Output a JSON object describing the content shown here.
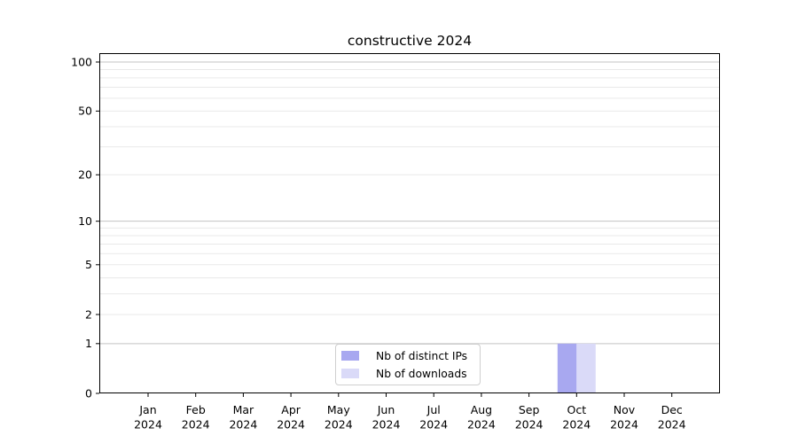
{
  "chart_data": {
    "type": "bar",
    "title": "constructive 2024",
    "categories": [
      "Jan 2024",
      "Feb 2024",
      "Mar 2024",
      "Apr 2024",
      "May 2024",
      "Jun 2024",
      "Jul 2024",
      "Aug 2024",
      "Sep 2024",
      "Oct 2024",
      "Nov 2024",
      "Dec 2024"
    ],
    "series": [
      {
        "name": "Nb of distinct IPs",
        "color": "#a8a8f0",
        "values": [
          0,
          0,
          0,
          0,
          0,
          0,
          0,
          0,
          0,
          1,
          0,
          0
        ]
      },
      {
        "name": "Nb of downloads",
        "color": "#dadaf8",
        "values": [
          0,
          0,
          0,
          0,
          0,
          0,
          0,
          0,
          0,
          1,
          0,
          0
        ]
      }
    ],
    "xlabel": "",
    "ylabel": "",
    "yscale": "log(value+1)",
    "ylim": [
      0,
      113
    ],
    "y_ticks": [
      0,
      1,
      2,
      5,
      10,
      20,
      50,
      100
    ],
    "y_gridlines_major": [
      1,
      10,
      100
    ],
    "y_gridlines_minor": [
      2,
      3,
      4,
      5,
      6,
      7,
      8,
      9,
      20,
      30,
      40,
      50,
      60,
      70,
      80,
      90
    ],
    "grid": "horizontal",
    "legend_position": "inside-bottom-center"
  },
  "colors": {
    "axis": "#000000",
    "tick_label": "#000000",
    "grid_major": "#c3c3c3",
    "grid_minor": "#e9e9e9",
    "legend_border": "#cfcfcf"
  }
}
